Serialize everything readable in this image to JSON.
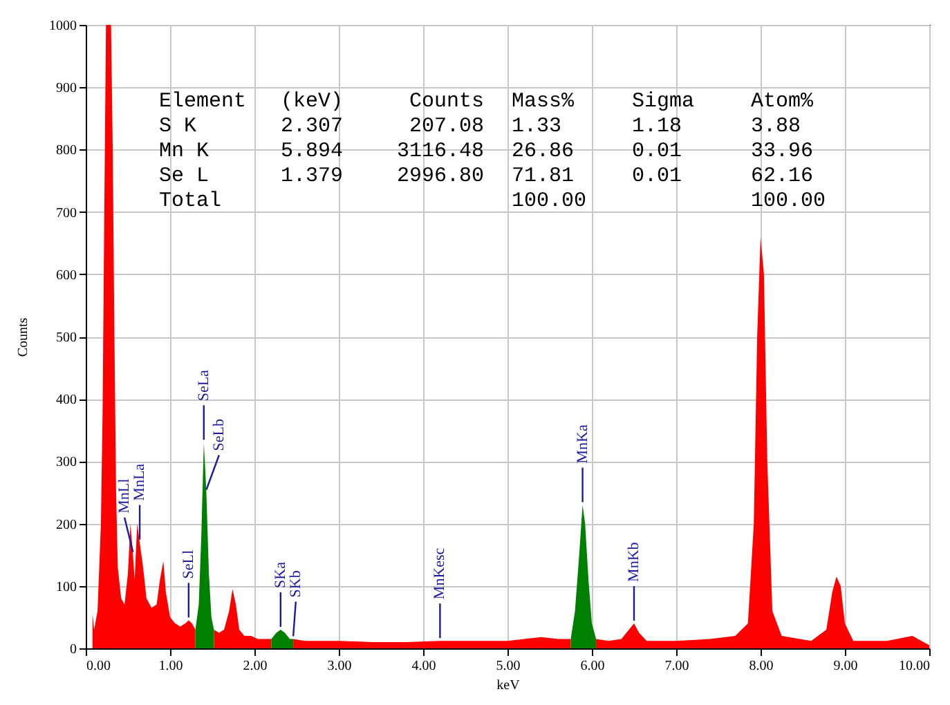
{
  "chart_data": {
    "type": "area",
    "xlabel": "keV",
    "ylabel": "Counts",
    "xlim": [
      0,
      10
    ],
    "ylim": [
      0,
      1000
    ],
    "xticks": [
      {
        "value": 0,
        "label": "0.00"
      },
      {
        "value": 1,
        "label": "1.00"
      },
      {
        "value": 2,
        "label": "2.00"
      },
      {
        "value": 3,
        "label": "3.00"
      },
      {
        "value": 4,
        "label": "4.00"
      },
      {
        "value": 5,
        "label": "5.00"
      },
      {
        "value": 6,
        "label": "6.00"
      },
      {
        "value": 7,
        "label": "7.00"
      },
      {
        "value": 8,
        "label": "8.00"
      },
      {
        "value": 9,
        "label": "9.00"
      },
      {
        "value": 10,
        "label": "10.00"
      }
    ],
    "yticks": [
      0,
      100,
      200,
      300,
      400,
      500,
      600,
      700,
      800,
      900,
      1000
    ],
    "grid": true,
    "series": [
      {
        "color": "#ff0000",
        "x": [
          0.08,
          0.1,
          0.14,
          0.18,
          0.2,
          0.22,
          0.24,
          0.3,
          0.32,
          0.34,
          0.36,
          0.38,
          0.42,
          0.46,
          0.5,
          0.53,
          0.56,
          0.58,
          0.61,
          0.64,
          0.68,
          0.72,
          0.78,
          0.84,
          0.88,
          0.92,
          0.95,
          1.0,
          1.06,
          1.12,
          1.18,
          1.22,
          1.26,
          1.3
        ],
        "values": [
          55,
          30,
          60,
          200,
          380,
          700,
          1000,
          1000,
          800,
          500,
          250,
          130,
          80,
          70,
          120,
          200,
          150,
          110,
          200,
          170,
          130,
          80,
          65,
          70,
          110,
          140,
          90,
          50,
          40,
          35,
          40,
          45,
          40,
          30
        ]
      },
      {
        "color": "#ff0000",
        "x": [
          1.52,
          1.58,
          1.64,
          1.7,
          1.74,
          1.78,
          1.82,
          1.88,
          1.96,
          2.04,
          2.12,
          2.2
        ],
        "values": [
          30,
          25,
          30,
          60,
          95,
          70,
          30,
          20,
          20,
          15,
          15,
          15
        ]
      },
      {
        "color": "#ff0000",
        "x": [
          2.46,
          2.6,
          3.0,
          3.4,
          3.8,
          4.2,
          4.6,
          5.0,
          5.2,
          5.4,
          5.6,
          5.75
        ],
        "values": [
          15,
          12,
          12,
          10,
          10,
          12,
          12,
          12,
          15,
          18,
          15,
          15
        ]
      },
      {
        "color": "#ff0000",
        "x": [
          6.05,
          6.2,
          6.35,
          6.44,
          6.5,
          6.56,
          6.65,
          7.0,
          7.4,
          7.7,
          7.85,
          7.92,
          7.96,
          8.0,
          8.04,
          8.08,
          8.14,
          8.25,
          8.6,
          8.78,
          8.85,
          8.9,
          8.95,
          9.0,
          9.1,
          9.5,
          9.8,
          10.0
        ],
        "values": [
          15,
          12,
          15,
          30,
          40,
          25,
          12,
          12,
          15,
          20,
          40,
          200,
          500,
          660,
          600,
          300,
          60,
          20,
          12,
          30,
          90,
          115,
          100,
          40,
          12,
          12,
          20,
          5
        ]
      },
      {
        "color": "#008000",
        "x": [
          1.3,
          1.34,
          1.37,
          1.4,
          1.43,
          1.46,
          1.49,
          1.52
        ],
        "values": [
          30,
          70,
          180,
          330,
          250,
          120,
          50,
          30
        ]
      },
      {
        "color": "#008000",
        "x": [
          2.2,
          2.26,
          2.31,
          2.36,
          2.42,
          2.46
        ],
        "values": [
          15,
          25,
          30,
          25,
          15,
          15
        ]
      },
      {
        "color": "#008000",
        "x": [
          5.75,
          5.8,
          5.85,
          5.89,
          5.92,
          5.96,
          6.0,
          6.05
        ],
        "values": [
          15,
          60,
          150,
          230,
          200,
          110,
          40,
          15
        ]
      }
    ],
    "annotations": [
      "Element",
      "(keV)",
      "Counts",
      "Mass%",
      "Sigma",
      "Atom%",
      "S  K",
      "2.307",
      "207.08",
      "1.33",
      "1.18",
      "3.88",
      "Mn K",
      "5.894",
      "3116.48",
      "26.86",
      "0.01",
      "33.96",
      "Se L",
      "1.379",
      "2996.80",
      "71.81",
      "0.01",
      "62.16",
      "Total",
      null,
      null,
      "100.00",
      null,
      "100.00",
      {
        "text": "MnLl",
        "x": 0.56,
        "y": 150
      },
      {
        "text": "MnLa",
        "x": 0.64,
        "y": 170
      },
      {
        "text": "SeLl",
        "x": 1.22,
        "y": 45
      },
      {
        "text": "SeLb",
        "x": 1.43,
        "y": 250
      },
      {
        "text": "SeLa",
        "x": 1.4,
        "y": 330
      },
      {
        "text": "SKa",
        "x": 2.31,
        "y": 30
      },
      {
        "text": "SKb",
        "x": 2.46,
        "y": 15
      },
      {
        "text": "MnKesc",
        "x": 4.2,
        "y": 12
      },
      {
        "text": "MnKa",
        "x": 5.89,
        "y": 230
      },
      {
        "text": "MnKb",
        "x": 6.5,
        "y": 40
      }
    ]
  }
}
